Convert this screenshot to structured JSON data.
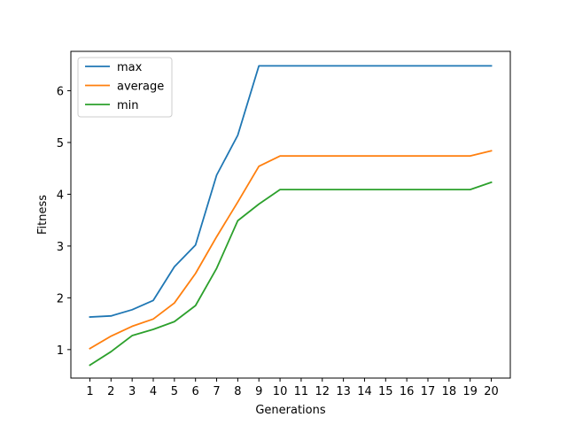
{
  "chart_data": {
    "type": "line",
    "title": "",
    "xlabel": "Generations",
    "ylabel": "Fitness",
    "x": [
      1,
      2,
      3,
      4,
      5,
      6,
      7,
      8,
      9,
      10,
      11,
      12,
      13,
      14,
      15,
      16,
      17,
      18,
      19,
      20
    ],
    "xlim": [
      0.1,
      20.9
    ],
    "ylim": [
      0.45,
      6.76
    ],
    "yticks": [
      1,
      2,
      3,
      4,
      5,
      6
    ],
    "grid": false,
    "legend_position": "upper-left",
    "series": [
      {
        "name": "max",
        "color": "#1f77b4",
        "values": [
          1.63,
          1.65,
          1.77,
          1.95,
          2.6,
          3.02,
          4.37,
          5.14,
          6.48,
          6.48,
          6.48,
          6.48,
          6.48,
          6.48,
          6.48,
          6.48,
          6.48,
          6.48,
          6.48,
          6.48
        ]
      },
      {
        "name": "average",
        "color": "#ff7f0e",
        "values": [
          1.02,
          1.26,
          1.45,
          1.59,
          1.9,
          2.47,
          3.18,
          3.85,
          4.54,
          4.74,
          4.74,
          4.74,
          4.74,
          4.74,
          4.74,
          4.74,
          4.74,
          4.74,
          4.74,
          4.84
        ]
      },
      {
        "name": "min",
        "color": "#2ca02c",
        "values": [
          0.7,
          0.96,
          1.27,
          1.39,
          1.54,
          1.85,
          2.57,
          3.49,
          3.81,
          4.09,
          4.09,
          4.09,
          4.09,
          4.09,
          4.09,
          4.09,
          4.09,
          4.09,
          4.09,
          4.23
        ]
      }
    ]
  }
}
